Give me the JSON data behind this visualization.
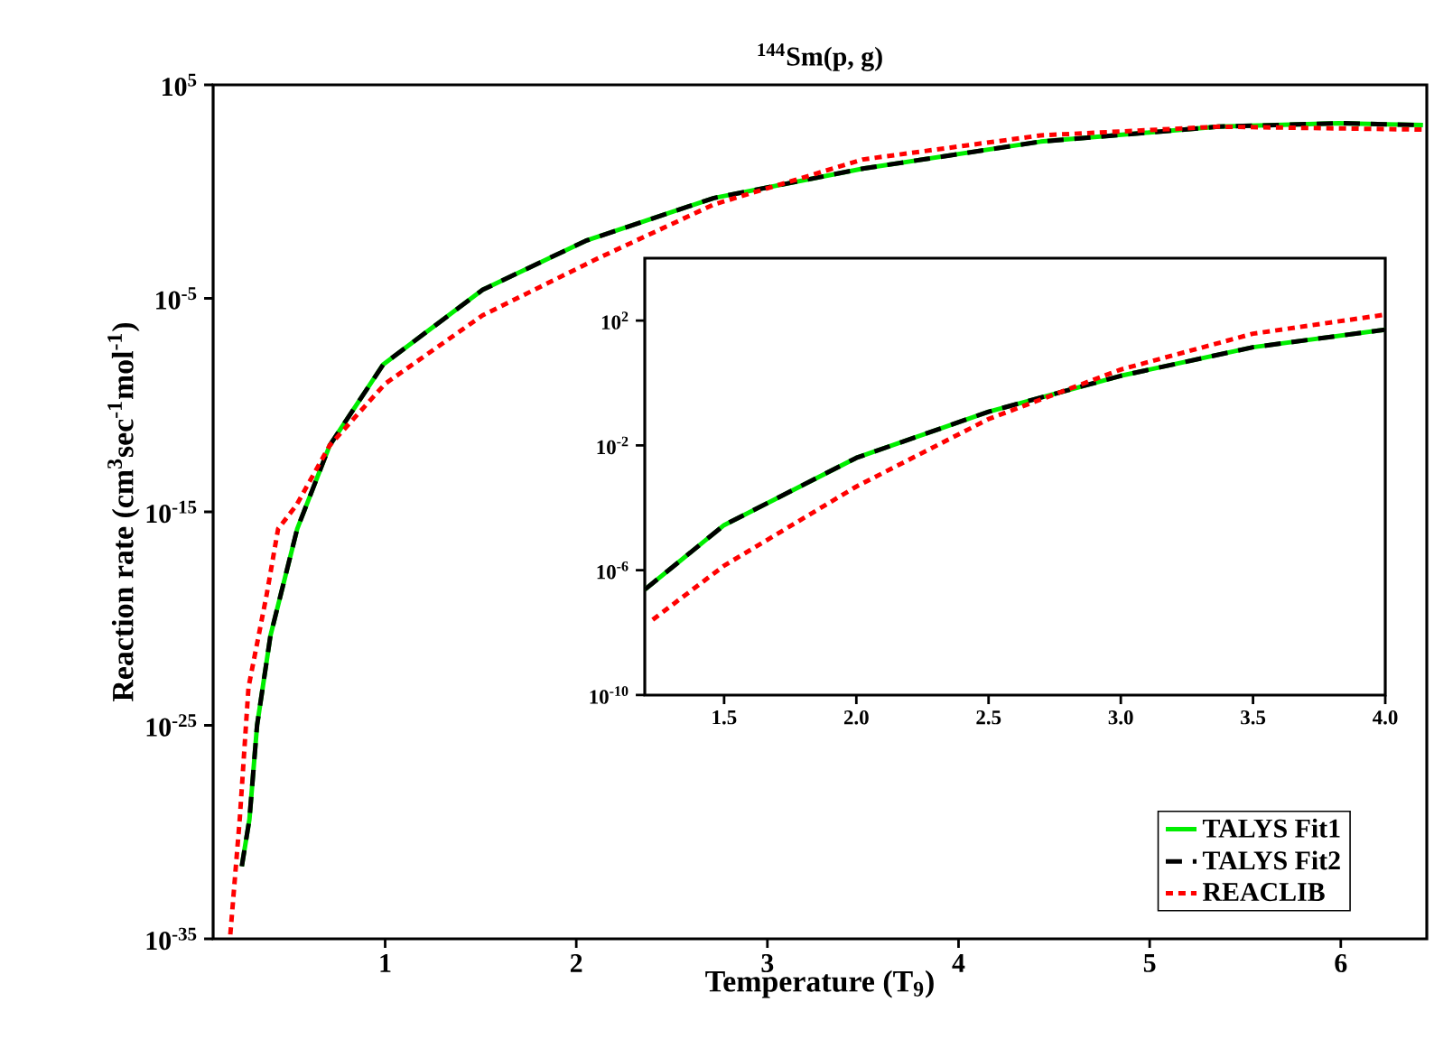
{
  "chart_data": [
    {
      "type": "line",
      "title": "$^{144}$Sm(p, g)",
      "xlabel": "Temperature (T$_{9}$)",
      "ylabel": "Reaction rate (cm$^{3}$sec$^{-1}$mol$^{-1}$)",
      "log": "y",
      "legend": "bottom right",
      "marker": "none",
      "xlim": [
        0.1,
        6.45
      ],
      "xticks": [
        1,
        2,
        3,
        4,
        5,
        6
      ],
      "ylim": [
        1e-35,
        100000.0
      ],
      "yticks": [
        {
          "value": 1e-35,
          "label": "10$^{-35}$"
        },
        {
          "value": 1e-25,
          "label": "10$^{-25}$"
        },
        {
          "value": 1e-15,
          "label": "10$^{-15}$"
        },
        {
          "value": 1e-05,
          "label": "10$^{-5}$"
        },
        {
          "value": 100000.0,
          "label": "10$^{5}$"
        }
      ],
      "series": [
        {
          "name": "TALYS Fit1",
          "color": "#00ee00",
          "line_style": "solid",
          "x": [
            0.25,
            0.29,
            0.33,
            0.4,
            0.54,
            0.71,
            0.99,
            1.51,
            2.05,
            2.72,
            3.5,
            4.43,
            5.36,
            5.99,
            6.43
          ],
          "values": [
            2.5e-32,
            4e-30,
            1e-25,
            1.6e-21,
            1.6e-16,
            1.3e-12,
            8e-09,
            2.5e-05,
            0.005,
            0.5,
            12,
            220,
            1100,
            1600,
            1300
          ]
        },
        {
          "name": "TALYS Fit2",
          "color": "#000000",
          "line_style": "dashed",
          "x": [
            0.25,
            0.29,
            0.33,
            0.4,
            0.54,
            0.71,
            0.99,
            1.51,
            2.05,
            2.72,
            3.5,
            4.43,
            5.36,
            5.99,
            6.43
          ],
          "values": [
            2.5e-32,
            4e-30,
            1e-25,
            1.6e-21,
            1.6e-16,
            1.3e-12,
            8e-09,
            2.5e-05,
            0.005,
            0.5,
            12,
            220,
            1100,
            1600,
            1300
          ]
        },
        {
          "name": "REACLIB",
          "color": "#ff0000",
          "line_style": "dotted",
          "x": [
            0.19,
            0.24,
            0.285,
            0.38,
            0.44,
            0.535,
            0.71,
            1.0,
            1.51,
            2.12,
            2.72,
            3.5,
            4.43,
            5.36,
            6.43
          ],
          "values": [
            1.6e-35,
            5e-30,
            6e-24,
            1.3e-19,
            1.6e-16,
            2e-15,
            1.3e-12,
            1e-09,
            1.6e-06,
            0.0008,
            0.25,
            32,
            430,
            1100,
            800
          ]
        }
      ]
    },
    {
      "type": "line",
      "log": "y",
      "marker": "none",
      "xlim": [
        1.2,
        4.0
      ],
      "xticks": [
        1.5,
        {
          "value": 2,
          "label": "2.0"
        },
        2.5,
        {
          "value": 3,
          "label": "3.0"
        },
        3.5,
        {
          "value": 4,
          "label": "4.0"
        }
      ],
      "ylim": [
        1e-10,
        10000.0
      ],
      "yticks": [
        {
          "value": 1e-10,
          "label": "10$^{-10}$"
        },
        {
          "value": 1e-06,
          "label": "10$^{-6}$"
        },
        {
          "value": 0.01,
          "label": "10$^{-2}$"
        },
        {
          "value": 100.0,
          "label": "10$^{2}$"
        }
      ],
      "series": [
        {
          "color": "#00ee00",
          "line_style": "solid",
          "x": [
            1.2,
            1.5,
            2,
            2.5,
            3,
            3.5,
            4
          ],
          "values": [
            2.4e-07,
            2.8e-05,
            0.004,
            0.12,
            1.7,
            14,
            51
          ]
        },
        {
          "color": "#000000",
          "line_style": "dashed",
          "x": [
            1.2,
            1.5,
            2,
            2.5,
            3,
            3.5,
            4
          ],
          "values": [
            2.4e-07,
            2.8e-05,
            0.004,
            0.12,
            1.7,
            14,
            51
          ]
        },
        {
          "color": "#ff0000",
          "line_style": "dotted",
          "x": [
            1.23,
            1.5,
            2,
            2.5,
            3,
            3.5,
            4
          ],
          "values": [
            2.6e-08,
            1.4e-06,
            0.00048,
            0.07,
            2.7,
            38,
            155
          ]
        }
      ]
    }
  ]
}
